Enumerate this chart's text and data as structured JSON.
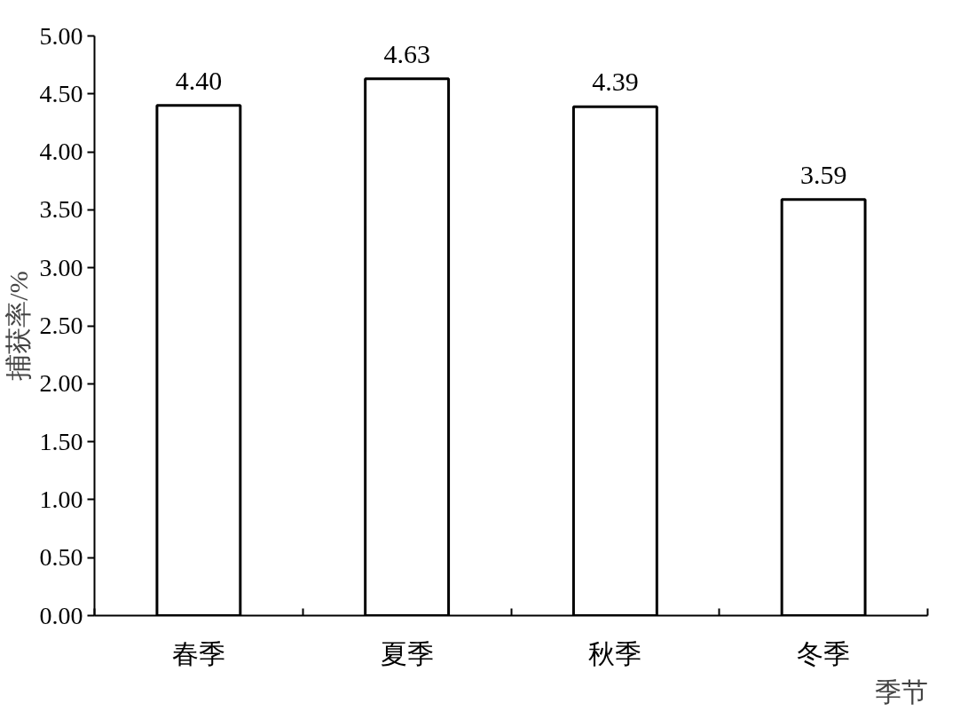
{
  "chart_data": {
    "type": "bar",
    "categories": [
      "春季",
      "夏季",
      "秋季",
      "冬季"
    ],
    "values": [
      4.4,
      4.63,
      4.39,
      3.59
    ],
    "value_labels": [
      "4.40",
      "4.63",
      "4.39",
      "3.59"
    ],
    "color": "#ffffff",
    "xlabel": "季节",
    "ylabel": "捕获率/%",
    "ylim": [
      0,
      5
    ],
    "yticks": [
      {
        "value": 0,
        "label": "0.00"
      },
      {
        "value": 0.5,
        "label": "0.50"
      },
      {
        "value": 1,
        "label": "1.00"
      },
      {
        "value": 1.5,
        "label": "1.50"
      },
      {
        "value": 2,
        "label": "2.00"
      },
      {
        "value": 2.5,
        "label": "2.50"
      },
      {
        "value": 3,
        "label": "3.00"
      },
      {
        "value": 3.5,
        "label": "3.50"
      },
      {
        "value": 4,
        "label": "4.00"
      },
      {
        "value": 4.5,
        "label": "4.50"
      },
      {
        "value": 5,
        "label": "5.00"
      }
    ],
    "grid": false
  }
}
